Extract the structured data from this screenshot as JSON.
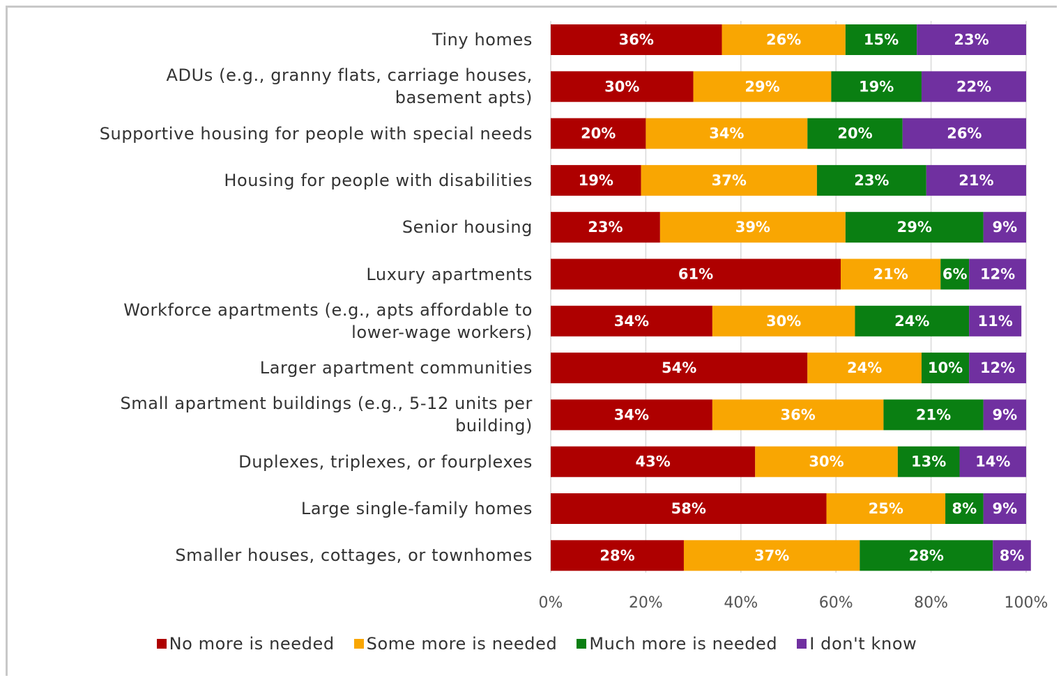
{
  "chart_data": {
    "type": "stacked-bar-horizontal",
    "categories": [
      "Tiny homes",
      "ADUs (e.g., granny flats, carriage houses,\nbasement apts)",
      "Supportive housing for people with special needs",
      "Housing for people with disabilities",
      "Senior housing",
      "Luxury apartments",
      "Workforce apartments (e.g., apts affordable to\nlower-wage workers)",
      "Larger apartment communities",
      "Small apartment buildings (e.g., 5-12 units per\nbuilding)",
      "Duplexes, triplexes, or fourplexes",
      "Large single-family homes",
      "Smaller houses, cottages, or townhomes"
    ],
    "series": [
      {
        "name": "No more is needed",
        "color": "#ae0000",
        "values": [
          36,
          30,
          20,
          19,
          23,
          61,
          34,
          54,
          34,
          43,
          58,
          28
        ],
        "value_labels": [
          "36%",
          "30%",
          "20%",
          "19%",
          "23%",
          "61%",
          "34%",
          "54%",
          "34%",
          "43%",
          "58%",
          "28%"
        ]
      },
      {
        "name": "Some more is needed",
        "color": "#f9a602",
        "values": [
          26,
          29,
          34,
          37,
          39,
          21,
          30,
          24,
          36,
          30,
          25,
          37
        ],
        "value_labels": [
          "26%",
          "29%",
          "34%",
          "37%",
          "39%",
          "21%",
          "30%",
          "24%",
          "36%",
          "30%",
          "25%",
          "37%"
        ]
      },
      {
        "name": "Much more is needed",
        "color": "#0a7f12",
        "values": [
          15,
          19,
          20,
          23,
          29,
          6,
          24,
          10,
          21,
          13,
          8,
          28
        ],
        "value_labels": [
          "15%",
          "19%",
          "20%",
          "23%",
          "29%",
          "6%",
          "24%",
          "10%",
          "21%",
          "13%",
          "8%",
          "28%"
        ]
      },
      {
        "name": "I don't know",
        "color": "#7030a0",
        "values": [
          23,
          22,
          26,
          21,
          9,
          12,
          11,
          12,
          9,
          14,
          9,
          8
        ],
        "value_labels": [
          "23%",
          "22%",
          "26%",
          "21%",
          "9%",
          "12%",
          "11%",
          "12%",
          "9%",
          "14%",
          "9%",
          "8%"
        ]
      }
    ],
    "xlim": [
      0,
      100
    ],
    "xticks": [
      {
        "value": 0,
        "label": "0%"
      },
      {
        "value": 20,
        "label": "20%"
      },
      {
        "value": 40,
        "label": "40%"
      },
      {
        "value": 60,
        "label": "60%"
      },
      {
        "value": 80,
        "label": "80%"
      },
      {
        "value": 100,
        "label": "100%"
      }
    ],
    "grid": true,
    "legend": "bottom"
  }
}
